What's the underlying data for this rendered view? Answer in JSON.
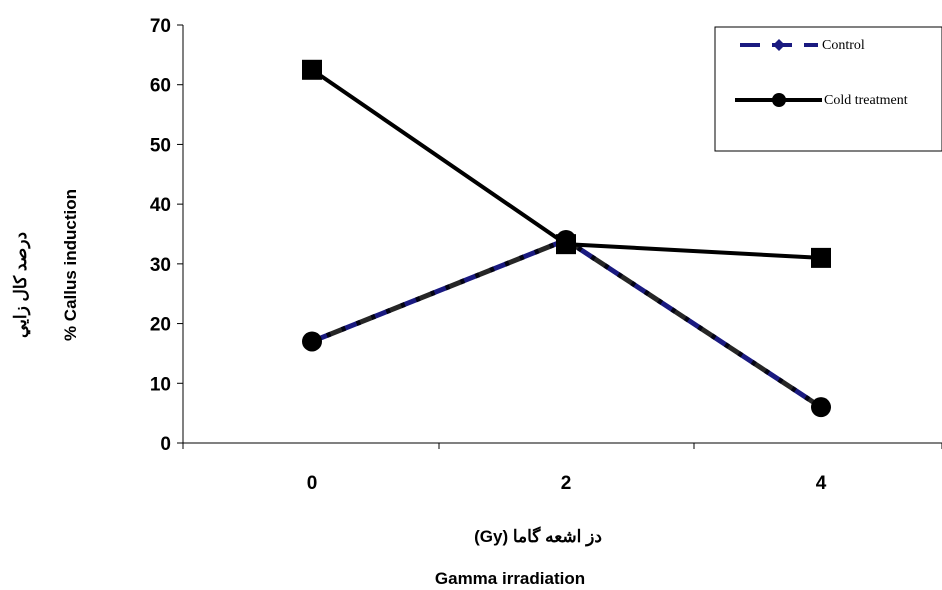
{
  "chart_data": {
    "type": "line",
    "x": [
      0,
      2,
      4
    ],
    "xticks": [
      "0",
      "2",
      "4"
    ],
    "ylim": [
      0,
      70
    ],
    "yticks": [
      "0",
      "10",
      "20",
      "30",
      "40",
      "50",
      "60",
      "70"
    ],
    "ylabel_fa": "درصد کال زایي",
    "ylabel": "% Callus induction",
    "xlabel_fa": "دز اشعه گاما (Gy)",
    "xlabel": "Gamma irradiation",
    "legend_position": "top-right",
    "series": [
      {
        "name": "Control",
        "values": [
          17,
          34,
          6
        ],
        "color": "#1a1a80",
        "style": "dashed",
        "marker": "diamond"
      },
      {
        "name": "Cold treatment",
        "values": [
          62.5,
          33.3,
          31
        ],
        "color": "#000000",
        "style": "solid",
        "marker": "square"
      }
    ],
    "overlay_series": {
      "values": [
        17,
        34,
        6
      ],
      "color": "#000000",
      "marker": "circle"
    },
    "legend": {
      "entries": [
        {
          "label": "Control",
          "color": "#1a1a80",
          "style": "dashed",
          "marker": "diamond"
        },
        {
          "label": "Cold treatment",
          "color": "#000000",
          "style": "solid",
          "marker": "circle"
        }
      ]
    }
  }
}
